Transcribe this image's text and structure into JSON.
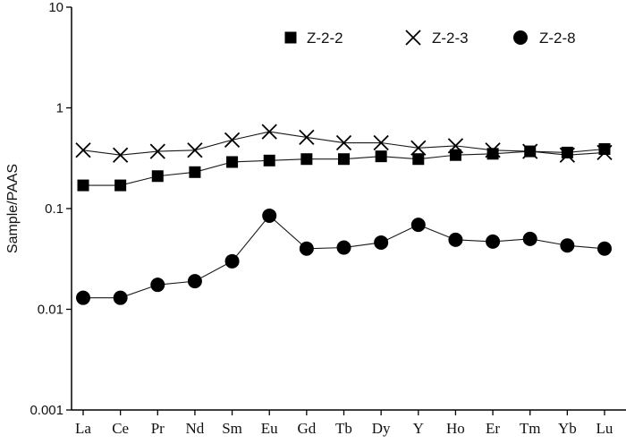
{
  "chart_data": {
    "type": "line",
    "scale": "log",
    "ylabel": "Sample/PAAS",
    "ylim": [
      0.001,
      10
    ],
    "y_ticks": [
      "10",
      "1",
      "0.1",
      "0.01",
      "0.001"
    ],
    "categories": [
      "La",
      "Ce",
      "Pr",
      "Nd",
      "Sm",
      "Eu",
      "Gd",
      "Tb",
      "Dy",
      "Y",
      "Ho",
      "Er",
      "Tm",
      "Yb",
      "Lu"
    ],
    "legend_position": "top-right",
    "series": [
      {
        "name": "Z-2-2",
        "marker": "square",
        "values": [
          0.17,
          0.17,
          0.21,
          0.23,
          0.29,
          0.3,
          0.31,
          0.31,
          0.33,
          0.31,
          0.34,
          0.35,
          0.37,
          0.36,
          0.39
        ]
      },
      {
        "name": "Z-2-3",
        "marker": "cross",
        "values": [
          0.38,
          0.34,
          0.37,
          0.38,
          0.48,
          0.58,
          0.51,
          0.45,
          0.45,
          0.4,
          0.42,
          0.38,
          0.37,
          0.34,
          0.36
        ]
      },
      {
        "name": "Z-2-8",
        "marker": "circle",
        "values": [
          0.013,
          0.013,
          0.0175,
          0.019,
          0.03,
          0.085,
          0.04,
          0.041,
          0.046,
          0.069,
          0.049,
          0.047,
          0.05,
          0.043,
          0.04
        ]
      }
    ],
    "colors": {
      "line": "#1a1a1a",
      "marker": "#000000",
      "axis": "#000000"
    }
  }
}
